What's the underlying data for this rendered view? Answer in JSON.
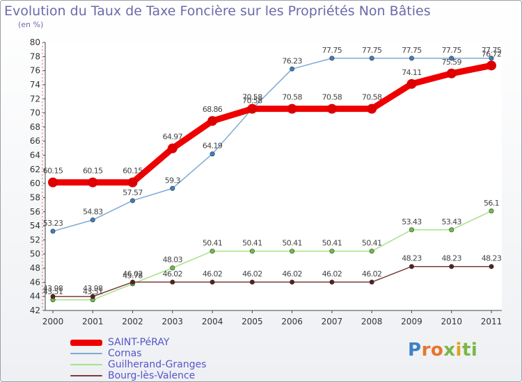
{
  "title": "Evolution du Taux de Taxe Foncière sur les Propriétés Non Bâties",
  "unit_label": "(en %)",
  "logo": {
    "text": "Proxiti",
    "parts": [
      "P",
      "r",
      "o",
      "x",
      "i",
      "ti"
    ]
  },
  "chart_data": {
    "type": "line",
    "title": "Evolution du Taux de Taxe Foncière sur les Propriétés Non Bâties",
    "ylabel": "(en %)",
    "xlabel": "",
    "x": [
      "2000",
      "2001",
      "2002",
      "2003",
      "2004",
      "2005",
      "2006",
      "2007",
      "2008",
      "2009",
      "2010",
      "2011"
    ],
    "ylim": [
      42,
      80
    ],
    "yticks": [
      42,
      44,
      46,
      48,
      50,
      52,
      54,
      56,
      58,
      60,
      62,
      64,
      66,
      68,
      70,
      72,
      74,
      76,
      78,
      80
    ],
    "grid": false,
    "legend_position": "bottom-left",
    "series": [
      {
        "name": "SAINT-PéRAY",
        "color": "#ee0000",
        "width": 9,
        "values": [
          60.15,
          60.15,
          60.15,
          64.97,
          68.86,
          70.58,
          70.58,
          70.58,
          70.58,
          74.11,
          75.59,
          76.72
        ],
        "labels": [
          "60.15",
          "60.15",
          "60.15",
          "64.97",
          "68.86",
          "70.58",
          "70.58",
          "70.58",
          "70.58",
          "74.11",
          "75.59",
          "76.72"
        ]
      },
      {
        "name": "Cornas",
        "color": "#7fa8d4",
        "width": 1.5,
        "values": [
          53.23,
          54.83,
          57.57,
          59.3,
          64.19,
          70.58,
          76.23,
          77.75,
          77.75,
          77.75,
          77.75,
          77.75
        ],
        "labels": [
          "53.23",
          "54.83",
          "57.57",
          "59.3",
          "64.19",
          "70.58",
          "76.23",
          "77.75",
          "77.75",
          "77.75",
          "77.75",
          "77.75"
        ]
      },
      {
        "name": "Guilherand-Granges",
        "color": "#a8e08a",
        "width": 1.5,
        "values": [
          43.51,
          43.51,
          45.78,
          48.03,
          50.41,
          50.41,
          50.41,
          50.41,
          50.41,
          53.43,
          53.43,
          56.1
        ],
        "labels": [
          "43.51",
          "43.51",
          "45.78",
          "48.03",
          "50.41",
          "50.41",
          "50.41",
          "50.41",
          "50.41",
          "53.43",
          "53.43",
          "56.1"
        ]
      },
      {
        "name": "Bourg-lès-Valence",
        "color": "#7a3a3a",
        "width": 1.5,
        "values": [
          43.98,
          43.98,
          46.02,
          46.02,
          46.02,
          46.02,
          46.02,
          46.02,
          46.02,
          48.23,
          48.23,
          48.23
        ],
        "labels": [
          "43.98",
          "43.98",
          "46.02",
          "46.02",
          "46.02",
          "46.02",
          "46.02",
          "46.02",
          "46.02",
          "48.23",
          "48.23",
          "48.23"
        ]
      }
    ]
  }
}
